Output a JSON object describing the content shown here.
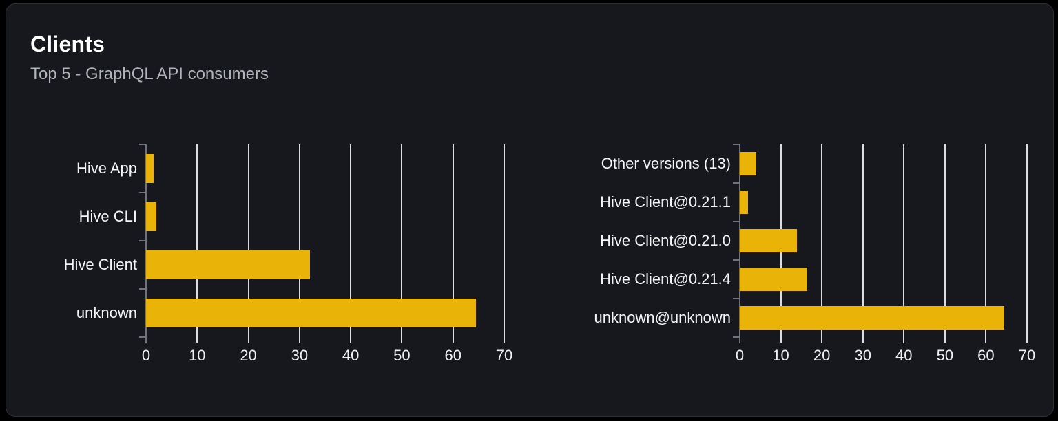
{
  "card": {
    "title": "Clients",
    "subtitle": "Top 5 - GraphQL API consumers"
  },
  "colors": {
    "bar_accent": "#eab308",
    "card_background": "#16181d",
    "card_border": "#2d3036",
    "gridline": "#d9dce1",
    "category_axis": "#6f737b",
    "title_text": "#ffffff",
    "subtitle_text": "#b1b5bb",
    "category_label_text": "#f3f4f6",
    "tick_label_text": "#eef0f2",
    "page_background": "#000000"
  },
  "chart_data": [
    {
      "type": "bar",
      "orientation": "horizontal",
      "name": "clients-by-name",
      "title": "",
      "categories": [
        "Hive App",
        "Hive CLI",
        "Hive Client",
        "unknown"
      ],
      "values": [
        1.5,
        2,
        32,
        64.5
      ],
      "xlim": [
        0,
        70
      ],
      "xticks": [
        0,
        10,
        20,
        30,
        40,
        50,
        60,
        70
      ],
      "grid": "vertical-on",
      "legend": "none"
    },
    {
      "type": "bar",
      "orientation": "horizontal",
      "name": "clients-by-version",
      "title": "",
      "categories": [
        "Other versions (13)",
        "Hive Client@0.21.1",
        "Hive Client@0.21.0",
        "Hive Client@0.21.4",
        "unknown@unknown"
      ],
      "values": [
        4,
        2,
        14,
        16.5,
        64.5
      ],
      "xlim": [
        0,
        70
      ],
      "xticks": [
        0,
        10,
        20,
        30,
        40,
        50,
        60,
        70
      ],
      "grid": "vertical-on",
      "legend": "none"
    }
  ]
}
